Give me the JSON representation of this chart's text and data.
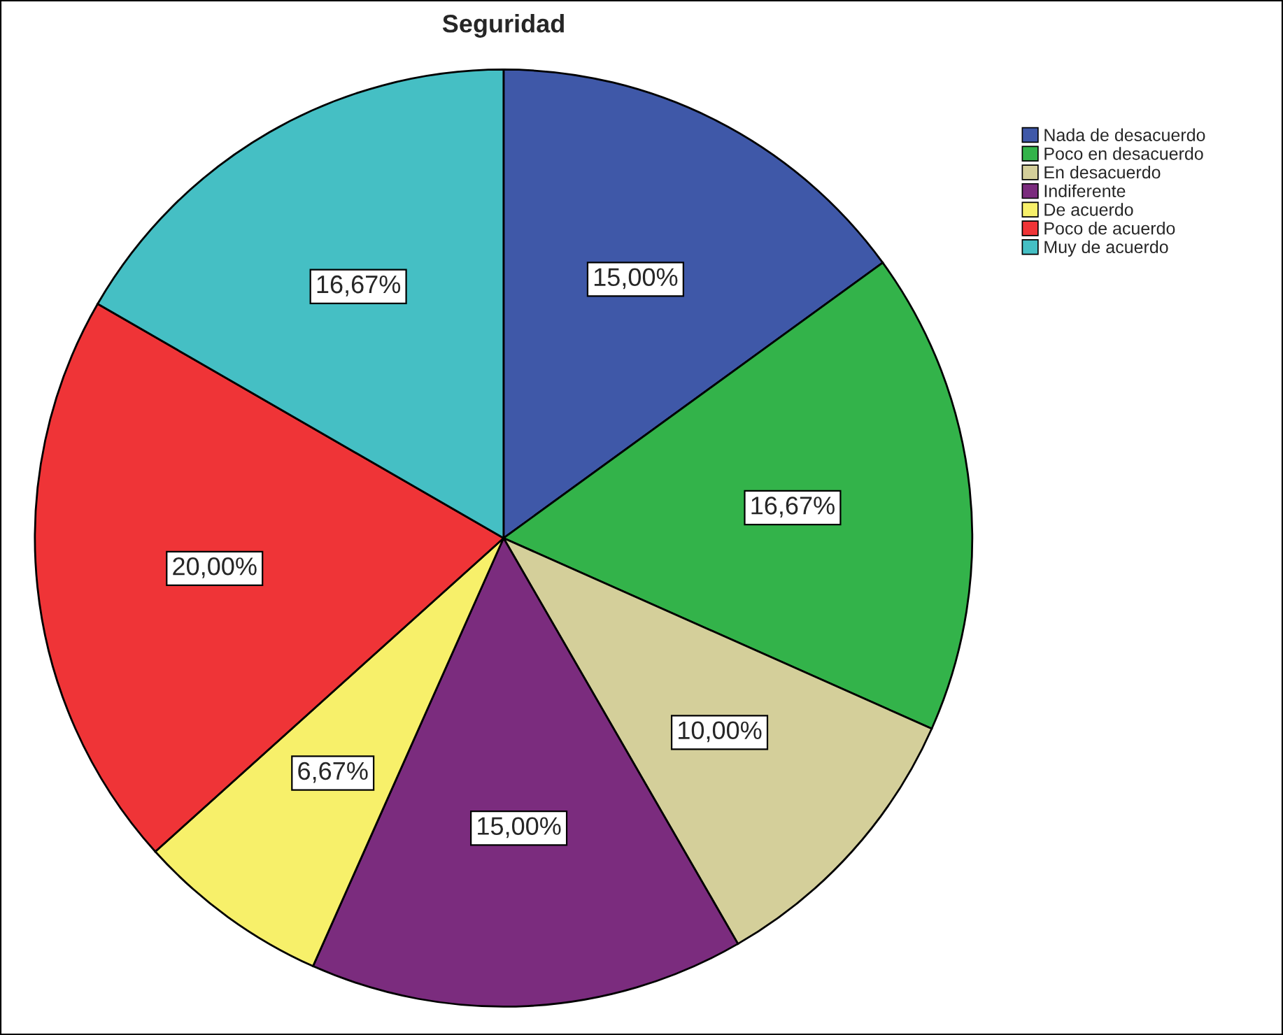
{
  "chart_data": {
    "type": "pie",
    "title": "Seguridad",
    "categories": [
      "Nada de desacuerdo",
      "Poco en desacuerdo",
      "En desacuerdo",
      "Indiferente",
      "De acuerdo",
      "Poco de acuerdo",
      "Muy de acuerdo"
    ],
    "values": [
      15.0,
      16.67,
      10.0,
      15.0,
      6.67,
      20.0,
      16.67
    ],
    "value_labels": [
      "15,00%",
      "16,67%",
      "10,00%",
      "15,00%",
      "6,67%",
      "20,00%",
      "16,67%"
    ],
    "colors": [
      "#3f58a8",
      "#33b34a",
      "#d4cf9a",
      "#7b2c7e",
      "#f7f06a",
      "#ef3437",
      "#45bfc4"
    ],
    "legend": "top right"
  }
}
